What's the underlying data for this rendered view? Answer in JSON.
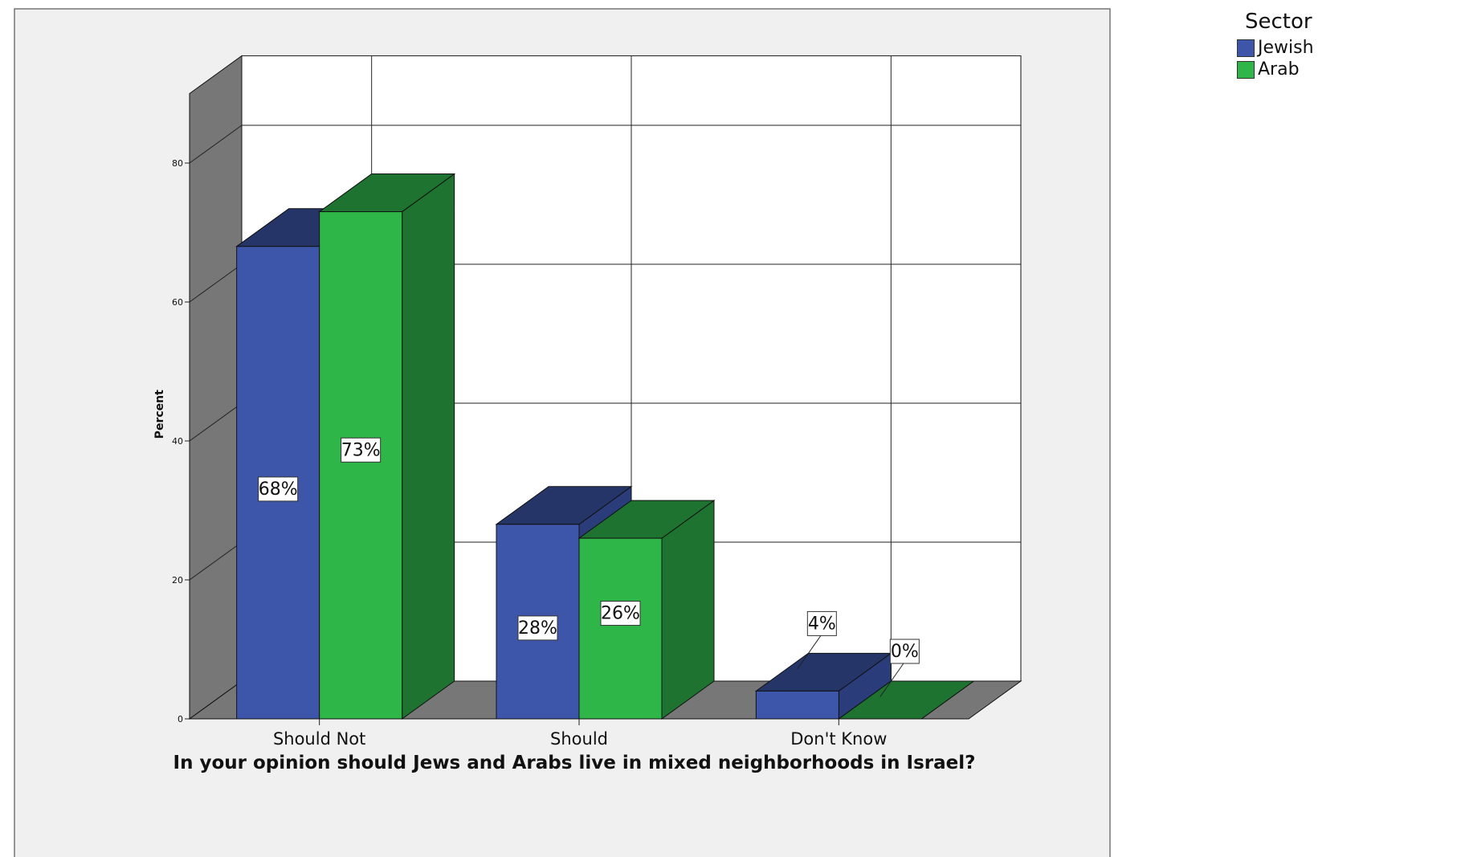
{
  "chart_data": {
    "type": "bar",
    "style": "3d-clustered",
    "title": "",
    "xlabel": "In your opinion should Jews and Arabs live in mixed neighborhoods in Israel?",
    "ylabel": "Percent",
    "ylim": [
      0,
      90
    ],
    "yticks": [
      0,
      20,
      40,
      60,
      80
    ],
    "categories": [
      "Should Not",
      "Should",
      "Don't Know"
    ],
    "series": [
      {
        "name": "Jewish",
        "color": "#3e56a9",
        "top_color": "#253568",
        "side_color": "#2a3c7a",
        "values": [
          68,
          28,
          4
        ],
        "labels": [
          "68%",
          "28%",
          "4%"
        ]
      },
      {
        "name": "Arab",
        "color": "#2eb648",
        "top_color": "#1e7330",
        "side_color": "#1e7330",
        "values": [
          73,
          26,
          0
        ],
        "labels": [
          "73%",
          "26%",
          "0%"
        ]
      }
    ],
    "legend": {
      "title": "Sector",
      "position": "top-right"
    },
    "grid": true,
    "colors": {
      "panel": "#f0f0f0",
      "wall": "#777777",
      "grid": "#222222"
    }
  }
}
